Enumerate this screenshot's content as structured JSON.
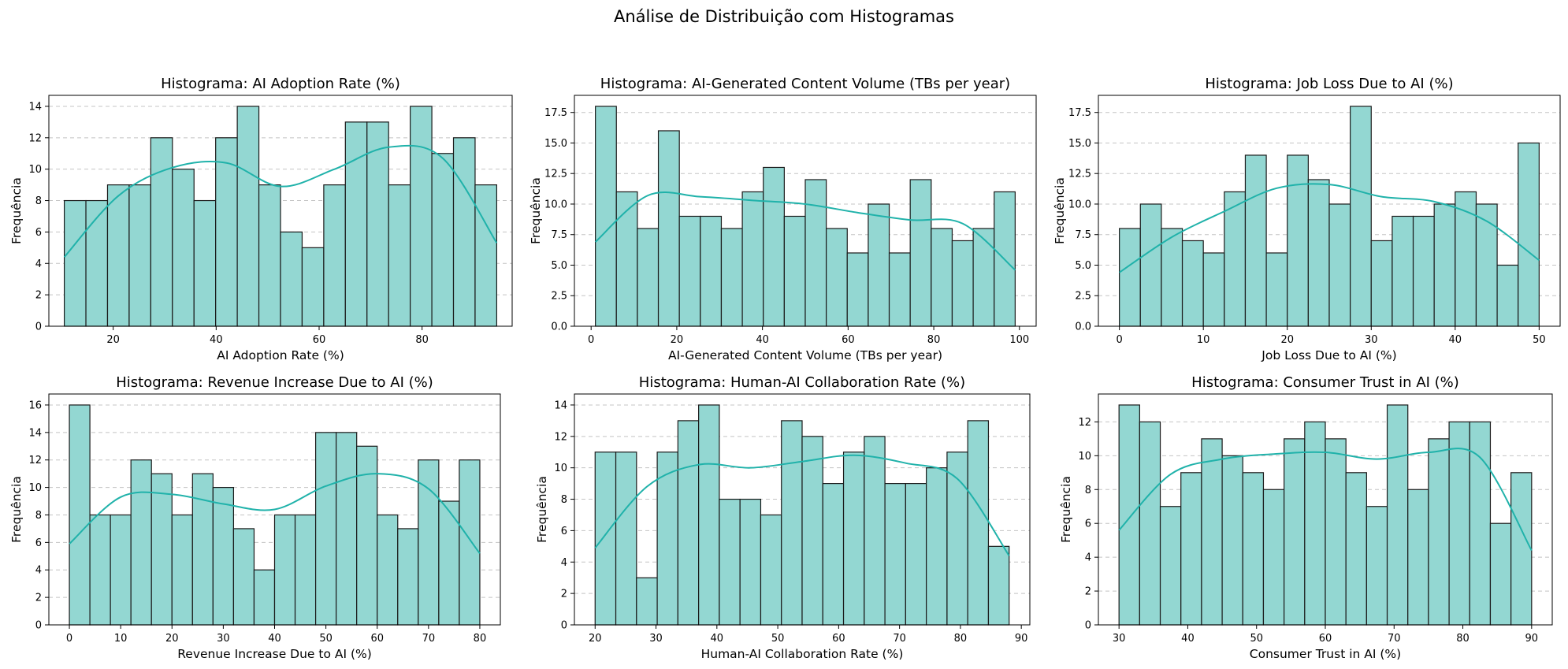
{
  "figure": {
    "title": "Análise de Distribuição com Histogramas"
  },
  "chart_data": [
    {
      "type": "bar",
      "title": "Histograma: AI Adoption Rate (%)",
      "xlabel": "AI Adoption Rate (%)",
      "ylabel": "Frequência",
      "xlim": [
        7.5,
        97.5
      ],
      "ylim": [
        0,
        14.7
      ],
      "xticks": [
        20,
        40,
        60,
        80
      ],
      "yticks": [
        0,
        2,
        4,
        6,
        8,
        10,
        12,
        14
      ],
      "bin_start": 10.5,
      "bin_width": 4.2,
      "values": [
        8,
        8,
        9,
        9,
        12,
        10,
        8,
        12,
        14,
        9,
        6,
        5,
        9,
        13,
        13,
        9,
        14,
        11,
        12,
        9
      ],
      "kde": [
        4.4,
        8.3,
        10.1,
        10.4,
        8.9,
        10.0,
        11.4,
        10.7,
        5.3
      ],
      "grid": "y",
      "color": "#93d7d2",
      "line_color": "#20b2aa"
    },
    {
      "type": "bar",
      "title": "Histograma: AI-Generated Content Volume (TBs per year)",
      "xlabel": "AI-Generated Content Volume (TBs per year)",
      "ylabel": "Frequência",
      "xlim": [
        -3.9,
        103.9
      ],
      "ylim": [
        0,
        18.9
      ],
      "xticks": [
        0,
        20,
        40,
        60,
        80,
        100
      ],
      "yticks": [
        0.0,
        2.5,
        5.0,
        7.5,
        10.0,
        12.5,
        15.0,
        17.5
      ],
      "tick_decimals": 1,
      "bin_start": 1,
      "bin_width": 4.9,
      "values": [
        18,
        11,
        8,
        16,
        9,
        9,
        8,
        11,
        13,
        9,
        12,
        8,
        6,
        10,
        6,
        12,
        8,
        7,
        8,
        11
      ],
      "kde": [
        6.9,
        10.7,
        10.6,
        10.3,
        10.0,
        9.3,
        8.7,
        8.4,
        4.6
      ],
      "grid": "y",
      "color": "#93d7d2",
      "line_color": "#20b2aa"
    },
    {
      "type": "bar",
      "title": "Histograma: Job Loss Due to AI (%)",
      "xlabel": "Job Loss Due to AI (%)",
      "ylabel": "Frequência",
      "xlim": [
        -2.5,
        52.5
      ],
      "ylim": [
        0,
        18.9
      ],
      "xticks": [
        0,
        10,
        20,
        30,
        40,
        50
      ],
      "yticks": [
        0.0,
        2.5,
        5.0,
        7.5,
        10.0,
        12.5,
        15.0,
        17.5
      ],
      "tick_decimals": 1,
      "bin_start": 0,
      "bin_width": 2.5,
      "values": [
        8,
        10,
        8,
        7,
        6,
        11,
        14,
        6,
        14,
        12,
        10,
        18,
        7,
        9,
        9,
        10,
        11,
        10,
        5,
        15
      ],
      "kde": [
        4.4,
        7.3,
        9.4,
        11.3,
        11.6,
        10.6,
        10.2,
        8.6,
        5.4
      ],
      "grid": "y",
      "color": "#93d7d2",
      "line_color": "#20b2aa"
    },
    {
      "type": "bar",
      "title": "Histograma: Revenue Increase Due to AI (%)",
      "xlabel": "Revenue Increase Due to AI (%)",
      "ylabel": "Frequência",
      "xlim": [
        -4.0,
        84.0
      ],
      "ylim": [
        0,
        16.8
      ],
      "xticks": [
        0,
        10,
        20,
        30,
        40,
        50,
        60,
        70,
        80
      ],
      "yticks": [
        0,
        2,
        4,
        6,
        8,
        10,
        12,
        14,
        16
      ],
      "bin_start": 0,
      "bin_width": 4.0,
      "values": [
        16,
        8,
        8,
        12,
        11,
        8,
        11,
        10,
        7,
        4,
        8,
        8,
        14,
        14,
        13,
        8,
        7,
        12,
        9,
        12
      ],
      "kde": [
        5.9,
        9.3,
        9.5,
        8.8,
        8.4,
        10.1,
        11.0,
        9.9,
        5.2
      ],
      "grid": "y",
      "color": "#93d7d2",
      "line_color": "#20b2aa"
    },
    {
      "type": "bar",
      "title": "Histograma: Human-AI Collaboration Rate (%)",
      "xlabel": "Human-AI Collaboration Rate (%)",
      "ylabel": "Frequência",
      "xlim": [
        16.6,
        91.4
      ],
      "ylim": [
        0,
        14.7
      ],
      "xticks": [
        20,
        30,
        40,
        50,
        60,
        70,
        80,
        90
      ],
      "yticks": [
        0,
        2,
        4,
        6,
        8,
        10,
        12,
        14
      ],
      "bin_start": 20,
      "bin_width": 3.4,
      "values": [
        11,
        11,
        3,
        11,
        13,
        14,
        8,
        8,
        7,
        13,
        12,
        9,
        11,
        12,
        9,
        9,
        10,
        11,
        13,
        5
      ],
      "kde": [
        4.9,
        8.8,
        10.2,
        10.0,
        10.4,
        10.8,
        10.3,
        9.3,
        4.4
      ],
      "grid": "y",
      "color": "#93d7d2",
      "line_color": "#20b2aa"
    },
    {
      "type": "bar",
      "title": "Histograma: Consumer Trust in AI (%)",
      "xlabel": "Consumer Trust in AI (%)",
      "ylabel": "Frequência",
      "xlim": [
        27.0,
        93.0
      ],
      "ylim": [
        0,
        13.65
      ],
      "xticks": [
        30,
        40,
        50,
        60,
        70,
        80,
        90
      ],
      "yticks": [
        0,
        2,
        4,
        6,
        8,
        10,
        12
      ],
      "bin_start": 30,
      "bin_width": 3.0,
      "values": [
        13,
        12,
        7,
        9,
        11,
        10,
        9,
        8,
        11,
        12,
        11,
        9,
        7,
        13,
        8,
        11,
        12,
        12,
        6,
        9
      ],
      "kde": [
        5.6,
        8.9,
        9.8,
        10.1,
        10.2,
        9.8,
        10.2,
        9.9,
        4.4
      ],
      "grid": "y",
      "color": "#93d7d2",
      "line_color": "#20b2aa"
    }
  ]
}
